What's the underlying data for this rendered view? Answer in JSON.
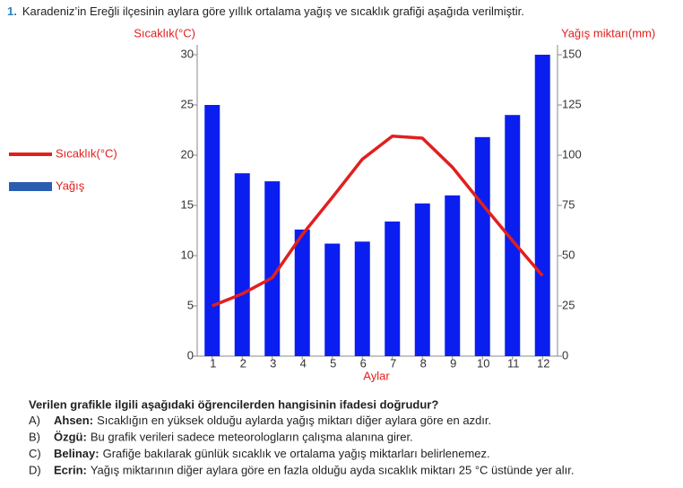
{
  "question": {
    "number": "1.",
    "text": "Karadeniz’in Ereğli ilçesinin aylara göre yıllık ortalama yağış ve sıcaklık grafiği aşağıda verilmiştir."
  },
  "chart_data": {
    "type": "combo",
    "y_label": "Sıcaklık(°C)",
    "y2_label": "Yağış miktarı(mm)",
    "x_label": "Aylar",
    "categories": [
      "1",
      "2",
      "3",
      "4",
      "5",
      "6",
      "7",
      "8",
      "9",
      "10",
      "11",
      "12"
    ],
    "series": [
      {
        "name": "Sıcaklık(°C)",
        "type": "line",
        "axis": "y",
        "color": "#e0201e",
        "values": [
          5.0,
          6.2,
          7.8,
          12.1,
          15.8,
          19.6,
          21.9,
          21.7,
          18.8,
          15.1,
          11.5,
          8.0
        ]
      },
      {
        "name": "Yağış",
        "type": "bar",
        "axis": "y2",
        "color": "#0a1ef0",
        "legend_color": "#2a5db0",
        "values": [
          125,
          91,
          87,
          63,
          56,
          57,
          67,
          76,
          80,
          109,
          120,
          150
        ]
      }
    ],
    "ylim": [
      0,
      30
    ],
    "yticks": [
      0,
      5,
      10,
      15,
      20,
      25,
      30
    ],
    "y2lim": [
      0,
      150
    ],
    "y2ticks": [
      0,
      25,
      50,
      75,
      100,
      125,
      150
    ],
    "grid": false,
    "legend": "left"
  },
  "prompt": "Verilen grafikle ilgili aşağıdaki öğrencilerden hangisinin ifadesi doğrudur?",
  "options": [
    {
      "letter": "A)",
      "name": "Ahsen:",
      "text": "Sıcaklığın en yüksek olduğu aylarda yağış miktarı diğer aylara göre en azdır."
    },
    {
      "letter": "B)",
      "name": "Özgü:",
      "text": "Bu grafik verileri sadece meteorologların çalışma alanına girer."
    },
    {
      "letter": "C)",
      "name": "Belinay:",
      "text": "Grafiğe bakılarak günlük sıcaklık ve ortalama yağış miktarları belirlenemez."
    },
    {
      "letter": "D)",
      "name": "Ecrin:",
      "text": "Yağış miktarının diğer aylara göre en fazla olduğu ayda sıcaklık miktarı 25 °C üstünde yer alır."
    }
  ]
}
